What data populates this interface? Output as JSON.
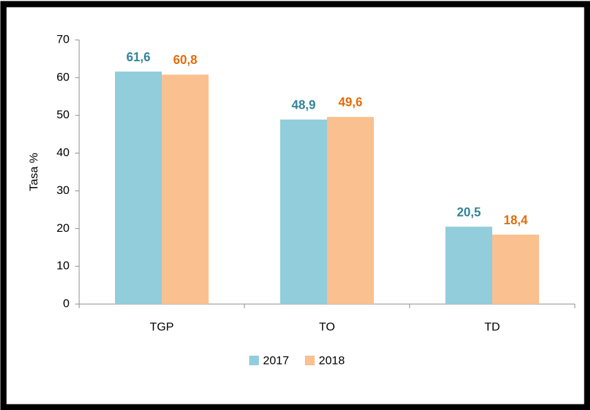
{
  "chart_data": {
    "type": "bar",
    "y_label": "Tasa %",
    "categories": [
      "TGP",
      "TO",
      "TD"
    ],
    "series": [
      {
        "name": "2017",
        "color": "#92cddc",
        "label_color": "#31849b",
        "values": [
          61.6,
          48.9,
          20.5
        ],
        "value_labels": [
          "61,6",
          "48,9",
          "20,5"
        ]
      },
      {
        "name": "2018",
        "color": "#fac090",
        "label_color": "#e46c0a",
        "values": [
          60.8,
          49.6,
          18.4
        ],
        "value_labels": [
          "60,8",
          "49,6",
          "18,4"
        ]
      }
    ],
    "ylim": [
      0,
      70
    ],
    "yticks": [
      0,
      10,
      20,
      30,
      40,
      50,
      60,
      70
    ],
    "grid": false,
    "legend": "bottom"
  }
}
